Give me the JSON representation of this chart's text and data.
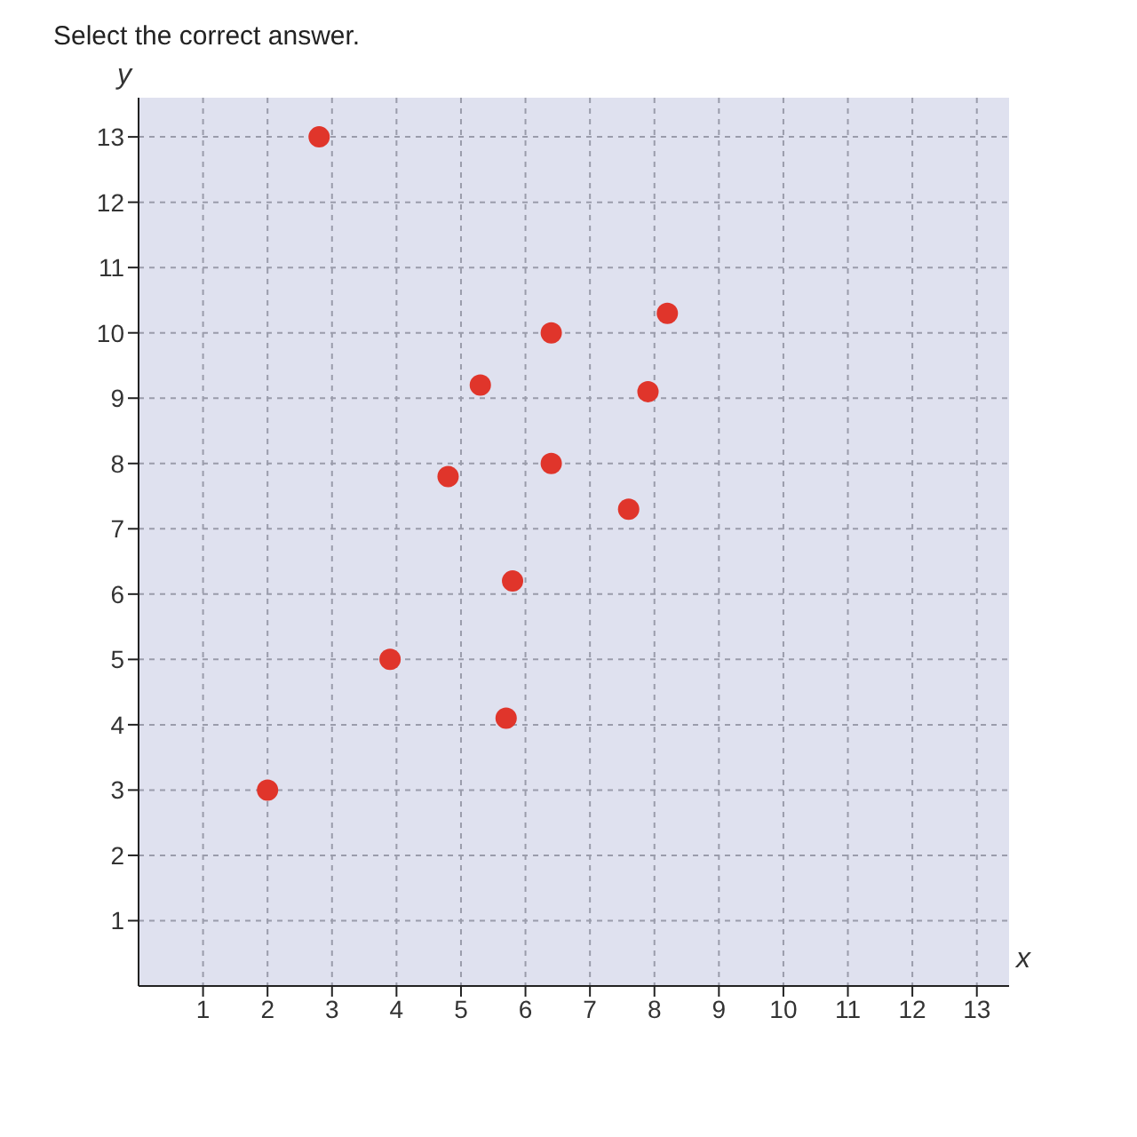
{
  "chart_data": {
    "type": "scatter",
    "title": "Select the correct answer.",
    "xlabel": "x",
    "ylabel": "y",
    "x": [
      2,
      2.8,
      3.9,
      4.8,
      5.3,
      5.7,
      5.8,
      6.4,
      6.4,
      7.6,
      7.9,
      8.2
    ],
    "values": [
      3,
      13,
      5,
      7.8,
      9.2,
      4.1,
      6.2,
      10,
      8,
      7.3,
      9.1,
      10.3
    ],
    "color": "#e0352b",
    "marker": "circle",
    "grid": true,
    "xlim": [
      0,
      13.5
    ],
    "ylim": [
      0,
      13.6
    ],
    "xticks": [
      1,
      2,
      3,
      4,
      5,
      6,
      7,
      8,
      9,
      10,
      11,
      12,
      13
    ],
    "yticks": [
      1,
      2,
      3,
      4,
      5,
      6,
      7,
      8,
      9,
      10,
      11,
      12,
      13
    ]
  }
}
